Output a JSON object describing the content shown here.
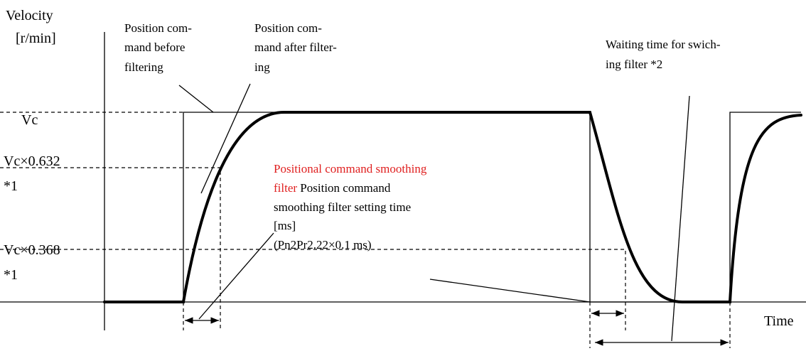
{
  "axis": {
    "y_label": [
      "Velocity",
      "[r/min]"
    ],
    "x_label": "Time"
  },
  "levels": {
    "vc": "Vc",
    "vc632": [
      "Vc×0.632",
      "*1"
    ],
    "vc368": [
      "Vc×0.368",
      "*1"
    ]
  },
  "callouts": {
    "before": [
      "Position com-",
      "mand before",
      "filtering"
    ],
    "after": [
      "Position com-",
      "mand after filter-",
      "ing"
    ],
    "waiting": [
      "Waiting time for swich-",
      "ing filter *2"
    ]
  },
  "filter_note": {
    "name_lines": [
      "Positional command smoothing",
      "filter"
    ],
    "text_lines": [
      "Position command",
      "smoothing filter setting time",
      "[ms]"
    ],
    "formula": "(Pn2Pr2.22×0.1 ms)"
  }
}
